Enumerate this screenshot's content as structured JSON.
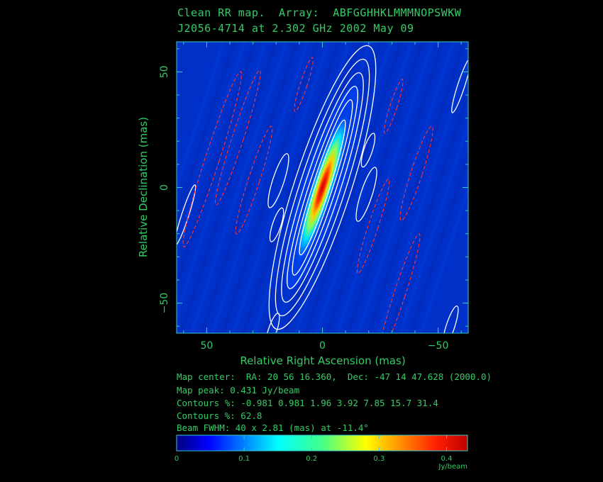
{
  "header": {
    "line1": "Clean RR map.  Array:  ABFGGHHKLMMMNOPSWKW",
    "line2": "J2056-4714 at 2.302 GHz 2002 May 09"
  },
  "info": {
    "map_center": "Map center:  RA: 20 56 16.360,  Dec: -47 14 47.628 (2000.0)",
    "map_peak": "Map peak: 0.431 Jy/beam",
    "contours1": "Contours %: -0.981 0.981 1.96 3.92 7.85 15.7 31.4",
    "contours2": "Contours %: 62.8",
    "beam": "Beam FWHM: 40 x 2.81 (mas) at -11.4°"
  },
  "chart_data": {
    "type": "heatmap",
    "xlabel": "Relative Right Ascension   (mas)",
    "ylabel": "Relative Declination   (mas)",
    "xlim": [
      63,
      -63
    ],
    "ylim": [
      -63,
      63
    ],
    "x_ticks": [
      50,
      0,
      -50
    ],
    "x_tick_labels": [
      "50",
      "0",
      "−50"
    ],
    "y_ticks": [
      50,
      0,
      -50
    ],
    "y_tick_labels": [
      "50",
      "0",
      "−50"
    ],
    "map_peak_jy_per_beam": 0.431,
    "colorbar": {
      "range": [
        0,
        0.431
      ],
      "ticks": [
        0,
        0.1,
        0.2,
        0.3,
        0.4
      ],
      "tick_labels": [
        "0",
        "0.1",
        "0.2",
        "0.3",
        "0.4"
      ],
      "unit": "Jy/beam"
    },
    "colors": {
      "positive_contour": "#ffffff",
      "negative_contour": "#ff3333",
      "frame": "#33cccc",
      "text": "#33cc66"
    }
  }
}
